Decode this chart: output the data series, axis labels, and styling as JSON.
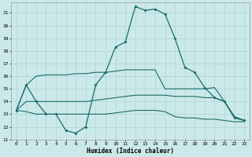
{
  "xlabel": "Humidex (Indice chaleur)",
  "bg_color": "#cce9e9",
  "grid_color": "#aad4d4",
  "line_color": "#1a6b6b",
  "xlim": [
    -0.5,
    23.5
  ],
  "ylim": [
    11,
    21.8
  ],
  "yticks": [
    11,
    12,
    13,
    14,
    15,
    16,
    17,
    18,
    19,
    20,
    21
  ],
  "xticks": [
    0,
    1,
    2,
    3,
    4,
    5,
    6,
    7,
    8,
    9,
    10,
    11,
    12,
    13,
    14,
    15,
    16,
    17,
    18,
    19,
    20,
    21,
    22,
    23
  ],
  "curve1_x": [
    0,
    1,
    2,
    3,
    4,
    5,
    6,
    7,
    8,
    9,
    10,
    11,
    12,
    13,
    14,
    15,
    16,
    17,
    18,
    19,
    20,
    21,
    22,
    23
  ],
  "curve1_y": [
    13.3,
    15.3,
    14.0,
    13.0,
    13.0,
    11.7,
    11.5,
    12.0,
    15.3,
    16.3,
    18.3,
    18.7,
    21.5,
    21.2,
    21.3,
    20.9,
    19.0,
    16.7,
    16.3,
    15.1,
    14.3,
    14.0,
    12.7,
    12.5
  ],
  "curve2_x": [
    0,
    1,
    2,
    3,
    4,
    5,
    6,
    7,
    8,
    9,
    10,
    11,
    12,
    13,
    14,
    15,
    16,
    17,
    18,
    19,
    20,
    21,
    22,
    23
  ],
  "curve2_y": [
    13.3,
    14.0,
    14.0,
    14.0,
    14.0,
    14.0,
    14.0,
    14.0,
    14.1,
    14.2,
    14.3,
    14.4,
    14.5,
    14.5,
    14.5,
    14.5,
    14.4,
    14.4,
    14.4,
    14.3,
    14.3,
    14.0,
    12.8,
    12.5
  ],
  "curve3_x": [
    0,
    1,
    2,
    3,
    4,
    5,
    6,
    7,
    8,
    9,
    10,
    11,
    12,
    13,
    14,
    15,
    16,
    17,
    18,
    19,
    20,
    21,
    22,
    23
  ],
  "curve3_y": [
    13.3,
    15.3,
    16.0,
    16.1,
    16.1,
    16.1,
    16.2,
    16.2,
    16.3,
    16.3,
    16.4,
    16.5,
    16.5,
    16.5,
    16.5,
    15.0,
    15.0,
    15.0,
    15.0,
    15.0,
    15.1,
    14.0,
    12.8,
    12.5
  ],
  "curve4_x": [
    0,
    1,
    2,
    3,
    4,
    5,
    6,
    7,
    8,
    9,
    10,
    11,
    12,
    13,
    14,
    15,
    16,
    17,
    18,
    19,
    20,
    21,
    22,
    23
  ],
  "curve4_y": [
    13.3,
    13.2,
    13.0,
    13.0,
    13.0,
    13.0,
    13.0,
    13.0,
    13.0,
    13.0,
    13.1,
    13.2,
    13.3,
    13.3,
    13.3,
    13.2,
    12.8,
    12.7,
    12.7,
    12.6,
    12.6,
    12.5,
    12.4,
    12.4
  ]
}
